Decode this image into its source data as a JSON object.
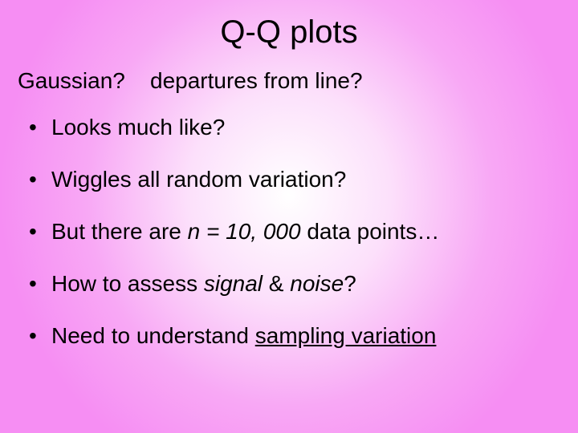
{
  "title": "Q-Q plots",
  "subtitle_a": "Gaussian?",
  "subtitle_b": "departures from line?",
  "bullets": {
    "b1": "Looks much like?",
    "b2": "Wiggles all random variation?",
    "b3a": "But there are ",
    "b3b": "n = 10, 000",
    "b3c": " data points…",
    "b4a": "How to assess ",
    "b4b": "signal",
    "b4c": " & ",
    "b4d": "noise",
    "b4e": "?",
    "b5a": "Need to understand ",
    "b5b": "sampling variation"
  },
  "colors": {
    "bg_center": "#ffffff",
    "bg_mid": "#fce0fb",
    "bg_outer": "#f68ef3",
    "text": "#000000"
  },
  "fonts": {
    "title_size": 40,
    "body_size": 28,
    "family": "Arial"
  }
}
